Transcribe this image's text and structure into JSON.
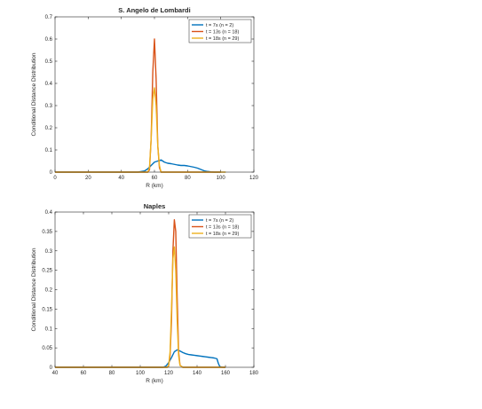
{
  "chart_data": [
    {
      "type": "line",
      "title": "S. Angelo de Lombardi",
      "xlabel": "R (km)",
      "ylabel": "Conditional Distance Distribution",
      "xlim": [
        0,
        120
      ],
      "ylim": [
        0,
        0.7
      ],
      "xticks": [
        "0",
        "20",
        "40",
        "60",
        "80",
        "100",
        "120"
      ],
      "xtick_values": [
        0,
        20,
        40,
        60,
        80,
        100,
        120
      ],
      "yticks": [
        "0",
        "0.1",
        "0.2",
        "0.3",
        "0.4",
        "0.5",
        "0.6",
        "0.7"
      ],
      "ytick_values": [
        0,
        0.1,
        0.2,
        0.3,
        0.4,
        0.5,
        0.6,
        0.7
      ],
      "grid": false,
      "legend_position": "top-right",
      "series": [
        {
          "name": "t = 7s (n = 2)",
          "color": "#0072BD",
          "x": [
            0,
            50,
            54,
            56,
            58,
            60,
            62,
            64,
            65,
            66,
            68,
            70,
            72,
            74,
            76,
            78,
            80,
            82,
            84,
            86,
            88,
            90,
            92,
            94,
            96,
            100
          ],
          "y": [
            0,
            0,
            0.005,
            0.015,
            0.03,
            0.045,
            0.05,
            0.055,
            0.05,
            0.045,
            0.04,
            0.038,
            0.035,
            0.032,
            0.03,
            0.03,
            0.028,
            0.025,
            0.022,
            0.018,
            0.012,
            0.006,
            0.003,
            0.001,
            0,
            0
          ]
        },
        {
          "name": "t = 13s (n = 18)",
          "color": "#D95319",
          "x": [
            0,
            56,
            57,
            58,
            59,
            60,
            61,
            62,
            63,
            64,
            100
          ],
          "y": [
            0,
            0,
            0.01,
            0.15,
            0.45,
            0.6,
            0.42,
            0.12,
            0.02,
            0,
            0
          ]
        },
        {
          "name": "t = 18s (n = 29)",
          "color": "#EDB120",
          "x": [
            0,
            56,
            57,
            58,
            59,
            60,
            61,
            62,
            63,
            64,
            103
          ],
          "y": [
            0,
            0,
            0.02,
            0.15,
            0.33,
            0.38,
            0.3,
            0.12,
            0.03,
            0,
            0
          ]
        }
      ]
    },
    {
      "type": "line",
      "title": "Naples",
      "xlabel": "R (km)",
      "ylabel": "Conditional Distance Distribution",
      "xlim": [
        40,
        180
      ],
      "ylim": [
        0,
        0.4
      ],
      "xticks": [
        "40",
        "60",
        "80",
        "100",
        "120",
        "140",
        "160",
        "180"
      ],
      "xtick_values": [
        40,
        60,
        80,
        100,
        120,
        140,
        160,
        180
      ],
      "yticks": [
        "0",
        "0.05",
        "0.1",
        "0.15",
        "0.2",
        "0.25",
        "0.3",
        "0.35",
        "0.4"
      ],
      "ytick_values": [
        0,
        0.05,
        0.1,
        0.15,
        0.2,
        0.25,
        0.3,
        0.35,
        0.4
      ],
      "grid": false,
      "legend_position": "top-right",
      "series": [
        {
          "name": "t = 7s (n = 2)",
          "color": "#0072BD",
          "x": [
            40,
            116,
            118,
            120,
            122,
            124,
            126,
            128,
            130,
            132,
            134,
            136,
            138,
            140,
            142,
            144,
            146,
            148,
            150,
            152,
            154,
            155,
            156,
            158,
            160
          ],
          "y": [
            0,
            0,
            0.003,
            0.012,
            0.025,
            0.04,
            0.045,
            0.042,
            0.038,
            0.035,
            0.033,
            0.032,
            0.031,
            0.03,
            0.029,
            0.028,
            0.027,
            0.026,
            0.025,
            0.024,
            0.022,
            0.01,
            0.002,
            0,
            0
          ]
        },
        {
          "name": "t = 13s (n = 18)",
          "color": "#D95319",
          "x": [
            40,
            119,
            120,
            121,
            122,
            123,
            124,
            125,
            126,
            127,
            128,
            130,
            160
          ],
          "y": [
            0,
            0,
            0.005,
            0.03,
            0.12,
            0.3,
            0.38,
            0.35,
            0.18,
            0.04,
            0.005,
            0,
            0
          ]
        },
        {
          "name": "t = 18s (n = 29)",
          "color": "#EDB120",
          "x": [
            40,
            119,
            120,
            121,
            122,
            123,
            124,
            125,
            126,
            127,
            128,
            130,
            160
          ],
          "y": [
            0,
            0,
            0.005,
            0.04,
            0.15,
            0.28,
            0.31,
            0.25,
            0.12,
            0.03,
            0.005,
            0,
            0
          ]
        }
      ]
    }
  ]
}
